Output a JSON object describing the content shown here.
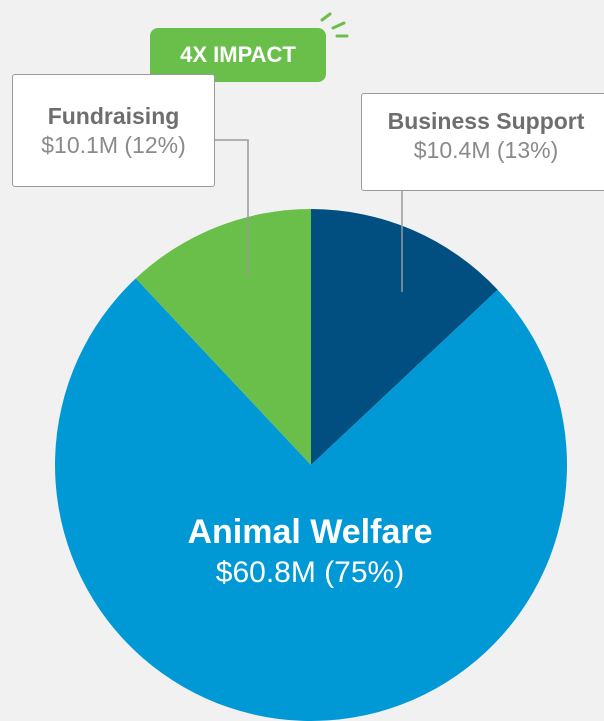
{
  "chart_data": {
    "type": "pie",
    "categories": [
      "Business Support",
      "Animal Welfare",
      "Fundraising"
    ],
    "values": [
      13,
      75,
      12
    ],
    "value_labels": [
      "$10.4M (13%)",
      "$60.8M (75%)",
      "$10.1M (12%)"
    ],
    "colors": [
      "#004f80",
      "#0099d6",
      "#6abf4b"
    ],
    "annotation": "4X IMPACT"
  }
}
